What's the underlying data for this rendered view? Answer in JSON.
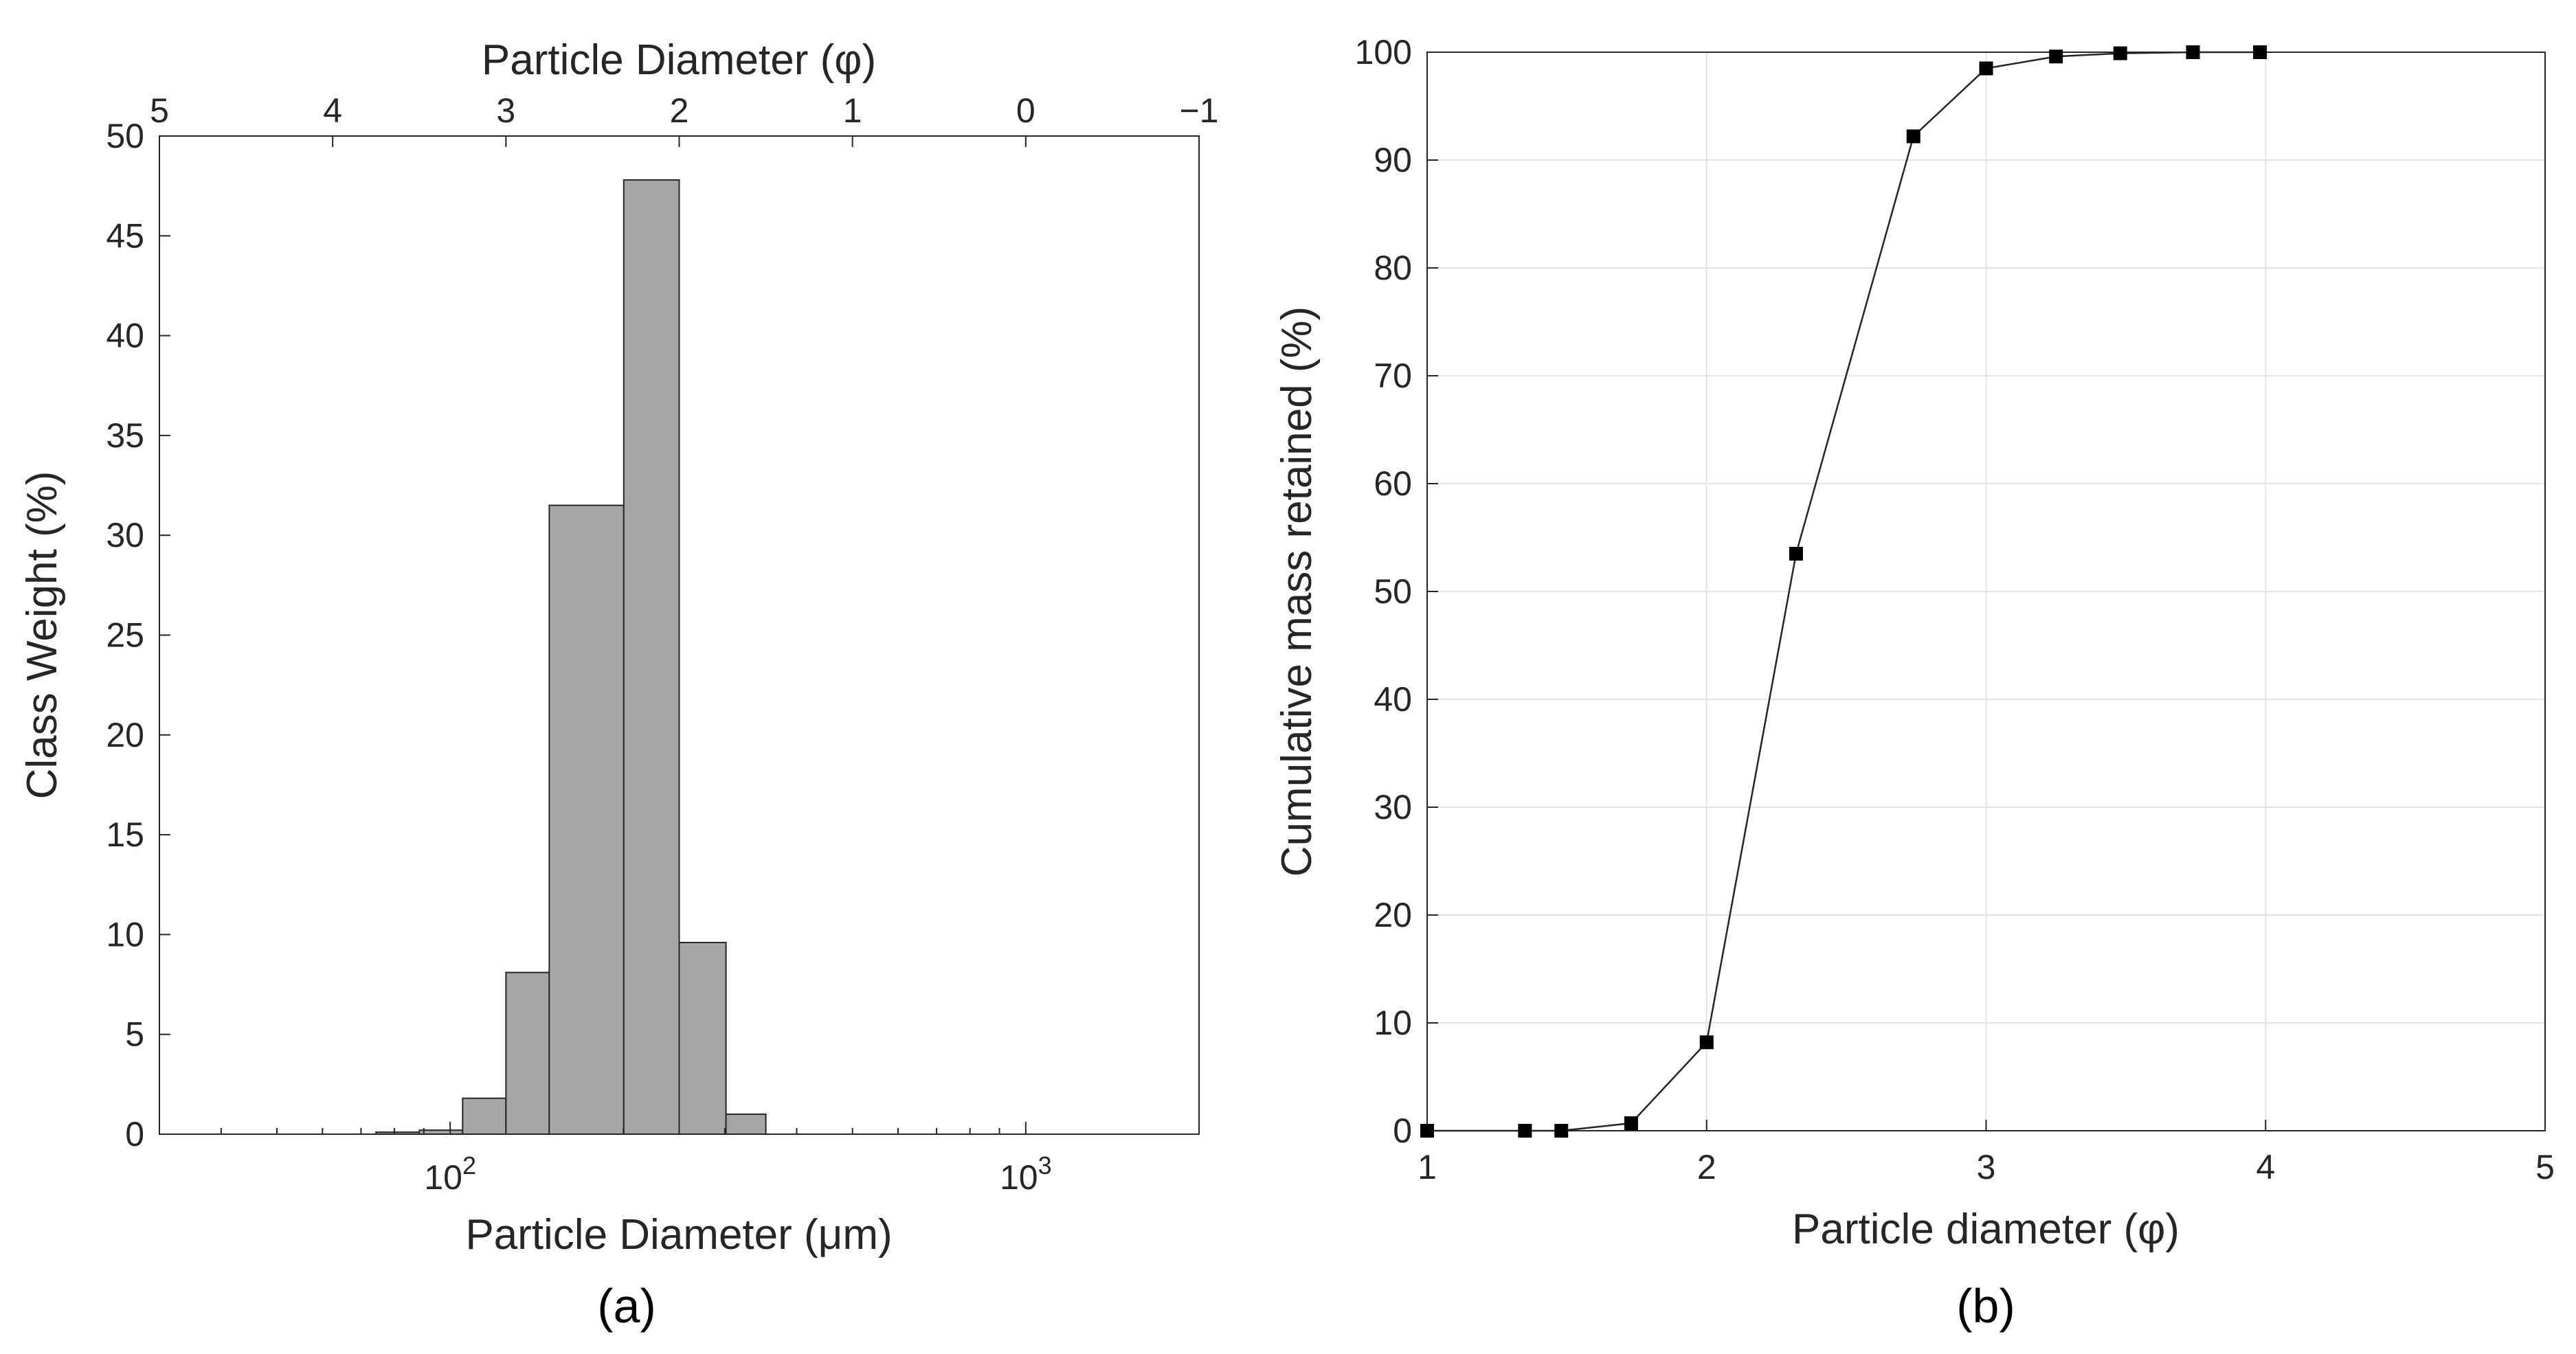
{
  "chart_data": [
    {
      "panel_label": "(a)",
      "type": "bar",
      "ylabel": "Class Weight (%)",
      "xlabel": "Particle Diameter (μm)",
      "x2label": "Particle Diameter (φ)",
      "x_scale": "log",
      "xlim_um": [
        31.25,
        2000
      ],
      "ylim": [
        0,
        50
      ],
      "y_ticks": [
        0,
        5,
        10,
        15,
        20,
        25,
        30,
        35,
        40,
        45,
        50
      ],
      "x_tick_labels": [
        "10^2",
        "10^3"
      ],
      "x_tick_values_um": [
        100,
        1000
      ],
      "x2_ticks_phi": [
        5,
        4,
        3,
        2,
        1,
        0,
        -1
      ],
      "x2_tick_labels": [
        "5",
        "4",
        "3",
        "2",
        "1",
        "0",
        "−1"
      ],
      "bar_fill": "#a6a6a6",
      "bars": [
        {
          "phi_from": 3.75,
          "phi_to": 3.5,
          "value": 0.1
        },
        {
          "phi_from": 3.5,
          "phi_to": 3.25,
          "value": 0.2
        },
        {
          "phi_from": 3.25,
          "phi_to": 3.0,
          "value": 1.8
        },
        {
          "phi_from": 3.0,
          "phi_to": 2.75,
          "value": 8.1
        },
        {
          "phi_from": 2.75,
          "phi_to": 2.32,
          "value": 31.5
        },
        {
          "phi_from": 2.32,
          "phi_to": 2.0,
          "value": 47.8
        },
        {
          "phi_from": 2.0,
          "phi_to": 1.73,
          "value": 9.6
        },
        {
          "phi_from": 1.73,
          "phi_to": 1.5,
          "value": 1.0
        }
      ]
    },
    {
      "panel_label": "(b)",
      "type": "line",
      "xlabel": "Particle diameter (φ)",
      "ylabel": "Cumulative mass retained (%)",
      "xlim": [
        1,
        5
      ],
      "ylim": [
        0,
        100
      ],
      "x_ticks": [
        1,
        2,
        3,
        4,
        5
      ],
      "y_ticks": [
        0,
        10,
        20,
        30,
        40,
        50,
        60,
        70,
        80,
        90,
        100
      ],
      "grid": true,
      "marker": "square",
      "series": [
        {
          "x": [
            1.0,
            1.35,
            1.48,
            1.73,
            2.0,
            2.32,
            2.74,
            3.0,
            3.25,
            3.48,
            3.74,
            3.98
          ],
          "y": [
            0.0,
            0.0,
            0.0,
            0.7,
            8.2,
            53.5,
            92.2,
            98.5,
            99.6,
            99.9,
            100.0,
            100.0
          ]
        }
      ]
    }
  ]
}
